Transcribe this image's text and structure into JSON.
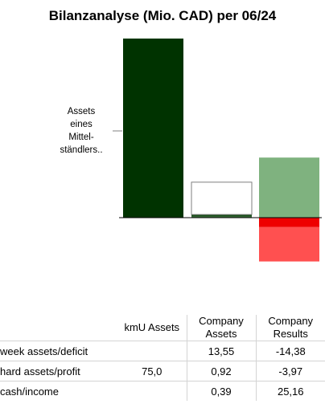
{
  "chart_data": {
    "type": "bar",
    "title": "Bilanzanalyse (Mio. CAD) per 06/24",
    "annotation_lines": [
      "Assets",
      "eines",
      "Mittel-",
      "ständlers.."
    ],
    "columns": [
      {
        "header": "kmU Assets",
        "segments": [
          {
            "name": "hard assets/profit",
            "value": 75.0,
            "color": "#003300",
            "fill": true
          }
        ]
      },
      {
        "header": "Company Assets",
        "segments": [
          {
            "name": "cash/income",
            "value": 0.39,
            "color": "#3c6f3c",
            "fill": true
          },
          {
            "name": "hard assets/profit",
            "value": 0.92,
            "color": "#1a4f1a",
            "fill": true
          },
          {
            "name": "week assets/deficit",
            "value": 13.55,
            "color": "#7f7f7f",
            "fill": false
          }
        ]
      },
      {
        "header": "Company Results",
        "segments": [
          {
            "name": "cash/income",
            "value": 25.16,
            "color": "#7fb27f",
            "fill": true
          },
          {
            "name": "hard assets/profit",
            "value": -3.97,
            "color": "#ee0000",
            "fill": true
          },
          {
            "name": "week assets/deficit",
            "value": -14.38,
            "color": "#ff5050",
            "fill": true
          }
        ]
      }
    ],
    "table": {
      "headers": [
        "",
        "kmU Assets",
        "Company\nAssets",
        "Company\nResults"
      ],
      "rows": [
        {
          "label": "week assets/deficit",
          "values": [
            "",
            "13,55",
            "-14,38"
          ]
        },
        {
          "label": "hard assets/profit",
          "values": [
            "75,0",
            "0,92",
            "-3,97"
          ]
        },
        {
          "label": "cash/income",
          "values": [
            "",
            "0,39",
            "25,16"
          ]
        }
      ]
    }
  }
}
